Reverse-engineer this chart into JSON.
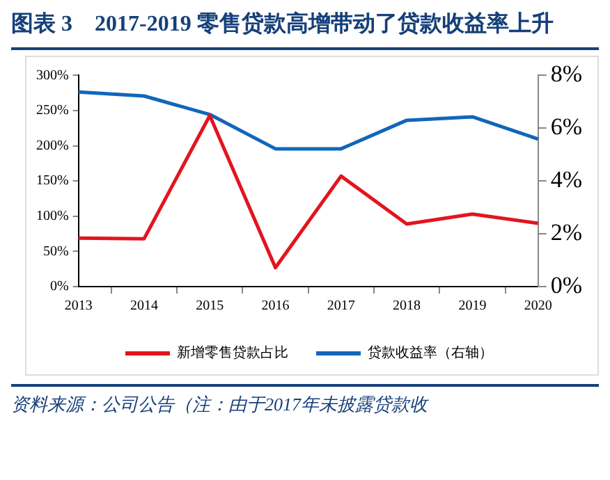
{
  "chart_data": {
    "type": "line",
    "title": "图表 3　2017-2019 零售贷款高增带动了贷款收益率上升",
    "categories": [
      "2013",
      "2014",
      "2015",
      "2016",
      "2017",
      "2018",
      "2019",
      "2020"
    ],
    "series": [
      {
        "name": "新增零售贷款占比",
        "color": "#e3141e",
        "values": [
          69,
          68,
          243,
          27,
          157,
          89,
          103,
          90
        ]
      },
      {
        "name": "贷款收益率（右轴）",
        "color": "#1166bb",
        "axis": "y2",
        "values": [
          7.37,
          7.22,
          6.52,
          5.22,
          5.22,
          6.3,
          6.43,
          5.59
        ]
      }
    ],
    "ylim": [
      0,
      300
    ],
    "yticks": [
      {
        "value": 0,
        "label": "0%"
      },
      {
        "value": 50,
        "label": "50%"
      },
      {
        "value": 100,
        "label": "100%"
      },
      {
        "value": 150,
        "label": "150%"
      },
      {
        "value": 200,
        "label": "200%"
      },
      {
        "value": 250,
        "label": "250%"
      },
      {
        "value": 300,
        "label": "300%"
      }
    ],
    "y2lim": [
      0,
      8
    ],
    "y2ticks": [
      {
        "value": 0,
        "label": "0%"
      },
      {
        "value": 2,
        "label": "2%"
      },
      {
        "value": 4,
        "label": "4%"
      },
      {
        "value": 6,
        "label": "6%"
      },
      {
        "value": 8,
        "label": "8%"
      }
    ],
    "grid": false,
    "legend": "bottom",
    "marker": "none",
    "line_style": "solid",
    "annotations": [
      "资料来源：公司公告（注：由于2017年未披露贷款收"
    ]
  }
}
